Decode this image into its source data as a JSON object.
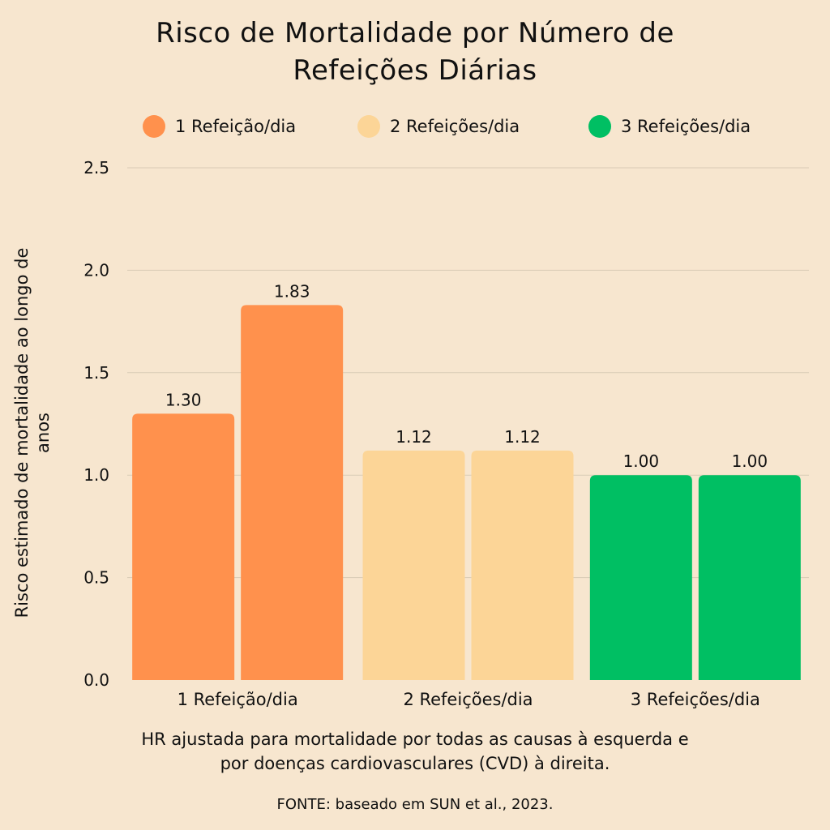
{
  "chart_data": {
    "type": "bar",
    "title_lines": [
      "Risco de Mortalidade por Número de",
      "Refeições Diárias"
    ],
    "categories": [
      "1 Refeição/dia",
      "2 Refeições/dia",
      "3 Refeições/dia"
    ],
    "series": [
      {
        "values": [
          1.3,
          1.12,
          1.0
        ]
      },
      {
        "values": [
          1.83,
          1.12,
          1.0
        ]
      }
    ],
    "data_labels": [
      [
        "1.30",
        "1.83"
      ],
      [
        "1.12",
        "1.12"
      ],
      [
        "1.00",
        "1.00"
      ]
    ],
    "category_colors": [
      "#FF914D",
      "#FCD597",
      "#00BF63"
    ],
    "legend": {
      "placement": "top",
      "entries": [
        {
          "label": "1 Refeição/dia",
          "color": "#FF914D"
        },
        {
          "label": "2 Refeições/dia",
          "color": "#FCD597"
        },
        {
          "label": "3 Refeições/dia",
          "color": "#00BF63"
        }
      ]
    },
    "ylabel_lines": [
      "Risco estimado de mortalidade ao longo de",
      "anos"
    ],
    "xlabel_lines": [
      "HR ajustada para mortalidade por todas as causas à esquerda e",
      "por doenças cardiovasculares (CVD) à direita."
    ],
    "ylim": [
      0,
      2.5
    ],
    "yticks": [
      "0.0",
      "0.5",
      "1.0",
      "1.5",
      "2.0",
      "2.5"
    ],
    "grid": true,
    "source": "FONTE: baseado em SUN et al., 2023.",
    "background": "#F7E6CF"
  }
}
